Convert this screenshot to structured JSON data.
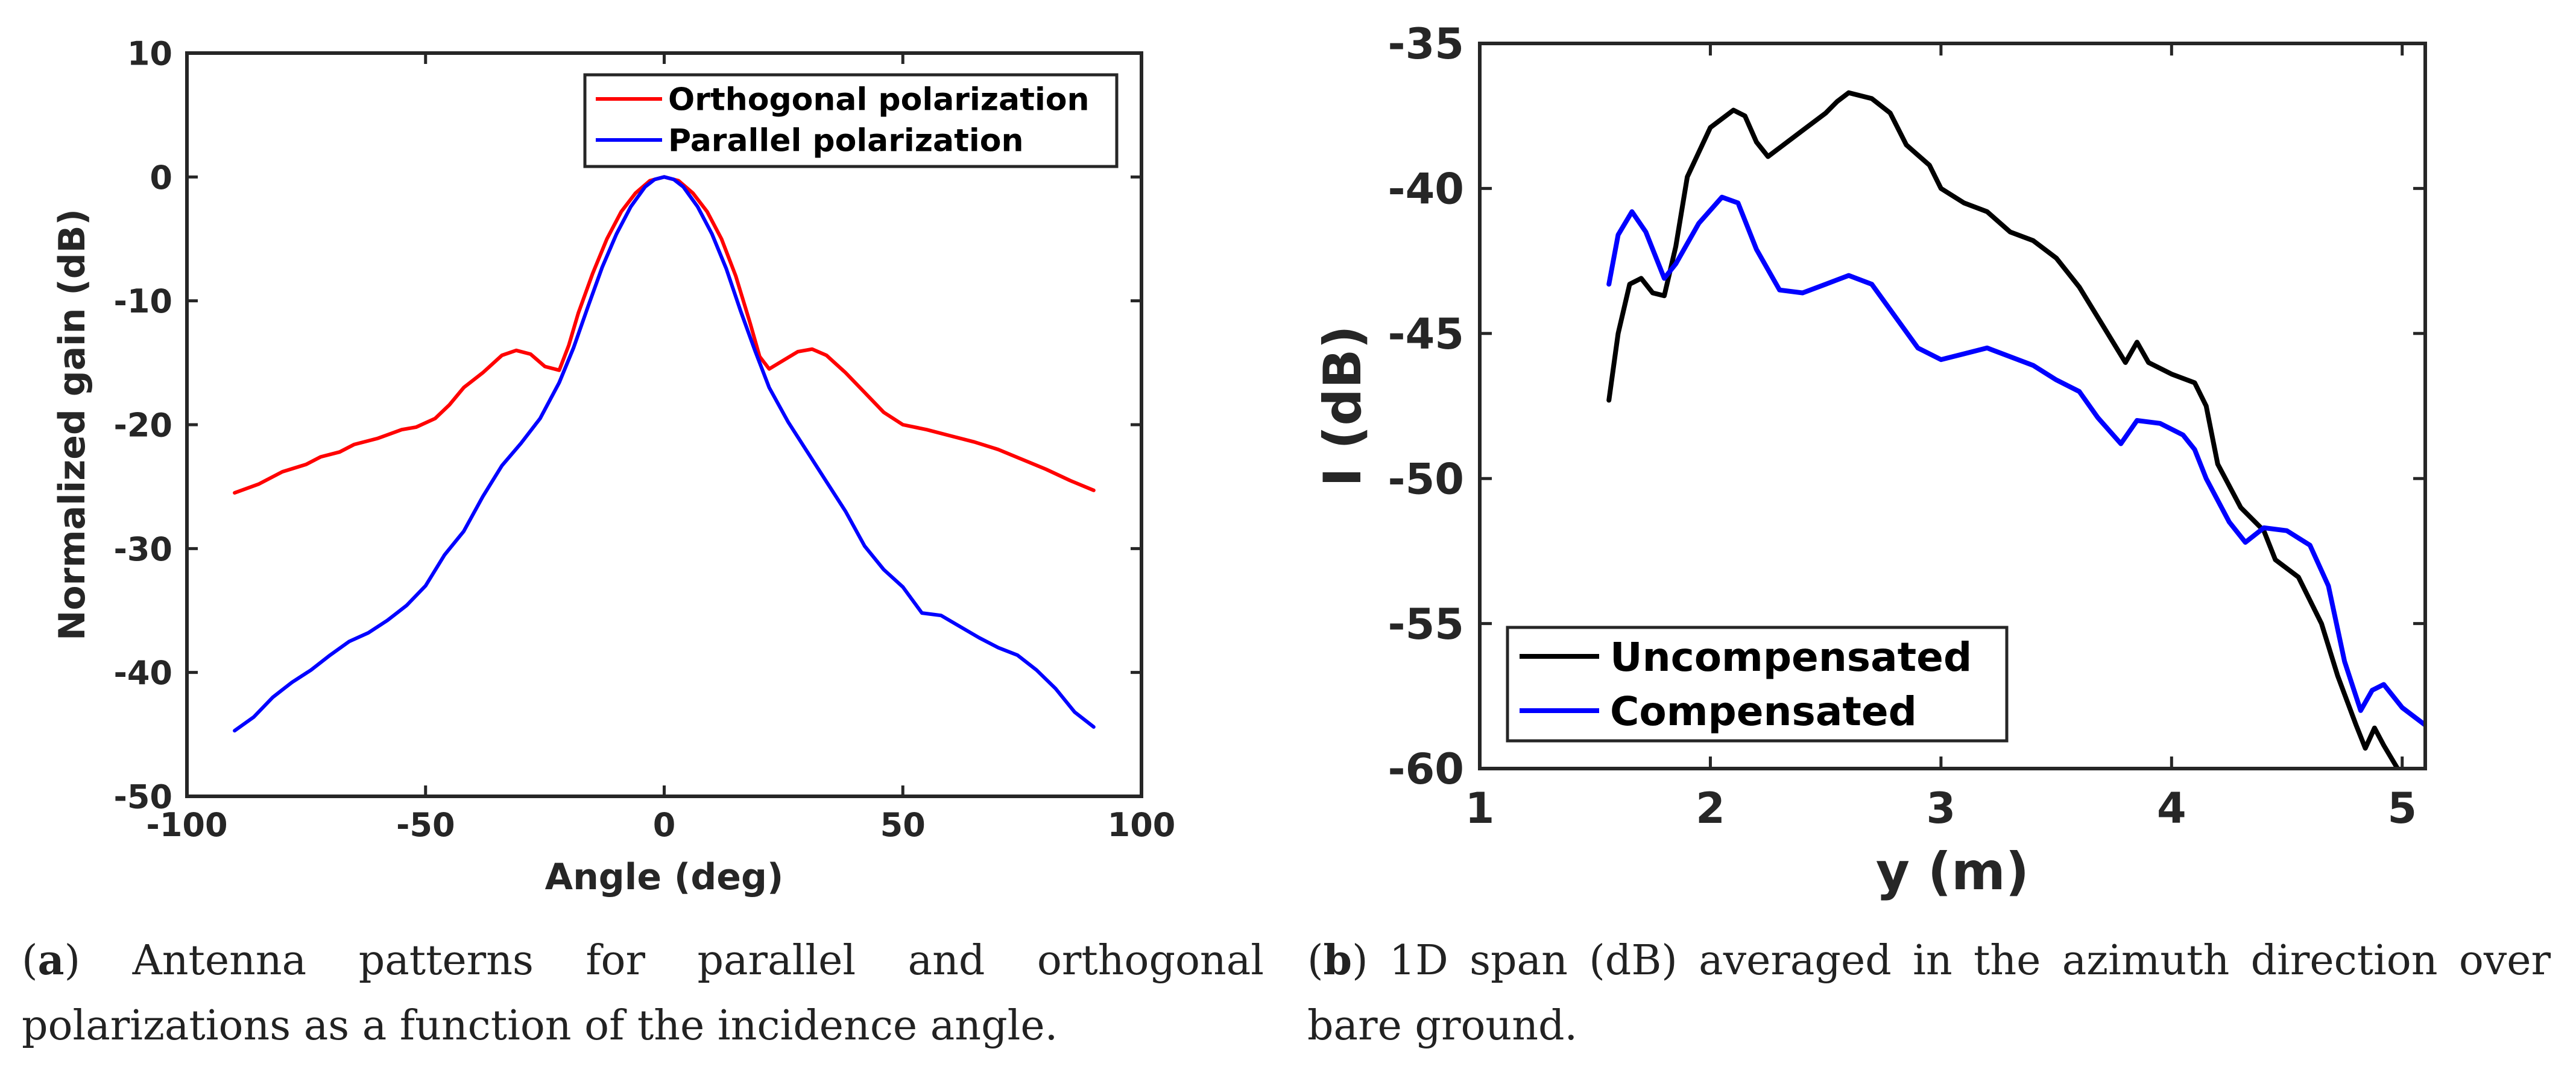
{
  "chart_data": [
    {
      "type": "line",
      "title": "",
      "xlabel": "Angle (deg)",
      "ylabel": "Normalized gain (dB)",
      "xlim": [
        -100,
        100
      ],
      "ylim": [
        -50,
        10
      ],
      "xticks": [
        -100,
        -50,
        0,
        50,
        100
      ],
      "yticks": [
        10,
        0,
        -10,
        -20,
        -30,
        -40,
        -50
      ],
      "xtick_labels": [
        "-100",
        "-50",
        "0",
        "50",
        "100"
      ],
      "ytick_labels": [
        "10",
        "0",
        "-10",
        "-20",
        "-30",
        "-40",
        "-50"
      ],
      "grid": false,
      "legend_position": "top-right",
      "series": [
        {
          "name": "Orthogonal polarization",
          "color": "#ff0000",
          "points": [
            [
              -90,
              -25.5
            ],
            [
              -85,
              -24.8
            ],
            [
              -80,
              -23.8
            ],
            [
              -75,
              -23.2
            ],
            [
              -72,
              -22.6
            ],
            [
              -68,
              -22.2
            ],
            [
              -65,
              -21.6
            ],
            [
              -60,
              -21.1
            ],
            [
              -55,
              -20.4
            ],
            [
              -52,
              -20.2
            ],
            [
              -48,
              -19.5
            ],
            [
              -45,
              -18.4
            ],
            [
              -42,
              -17.0
            ],
            [
              -38,
              -15.8
            ],
            [
              -34,
              -14.4
            ],
            [
              -31,
              -14.0
            ],
            [
              -28,
              -14.3
            ],
            [
              -25,
              -15.3
            ],
            [
              -22,
              -15.6
            ],
            [
              -20,
              -13.6
            ],
            [
              -18,
              -11.0
            ],
            [
              -15,
              -7.8
            ],
            [
              -12,
              -5.0
            ],
            [
              -9,
              -2.8
            ],
            [
              -6,
              -1.3
            ],
            [
              -3,
              -0.3
            ],
            [
              0,
              0.0
            ],
            [
              3,
              -0.3
            ],
            [
              6,
              -1.3
            ],
            [
              9,
              -2.8
            ],
            [
              12,
              -5.0
            ],
            [
              15,
              -8.0
            ],
            [
              18,
              -11.8
            ],
            [
              20,
              -14.5
            ],
            [
              22,
              -15.5
            ],
            [
              25,
              -14.8
            ],
            [
              28,
              -14.1
            ],
            [
              31,
              -13.9
            ],
            [
              34,
              -14.4
            ],
            [
              38,
              -15.8
            ],
            [
              42,
              -17.4
            ],
            [
              46,
              -19.0
            ],
            [
              50,
              -20.0
            ],
            [
              55,
              -20.4
            ],
            [
              60,
              -20.9
            ],
            [
              65,
              -21.4
            ],
            [
              70,
              -22.0
            ],
            [
              75,
              -22.8
            ],
            [
              80,
              -23.6
            ],
            [
              85,
              -24.5
            ],
            [
              90,
              -25.3
            ]
          ]
        },
        {
          "name": "Parallel polarization",
          "color": "#0000ff",
          "points": [
            [
              -90,
              -44.7
            ],
            [
              -86,
              -43.6
            ],
            [
              -82,
              -42.0
            ],
            [
              -78,
              -40.8
            ],
            [
              -74,
              -39.8
            ],
            [
              -70,
              -38.6
            ],
            [
              -66,
              -37.5
            ],
            [
              -62,
              -36.8
            ],
            [
              -58,
              -35.8
            ],
            [
              -54,
              -34.6
            ],
            [
              -50,
              -33.0
            ],
            [
              -46,
              -30.5
            ],
            [
              -42,
              -28.6
            ],
            [
              -38,
              -25.8
            ],
            [
              -34,
              -23.3
            ],
            [
              -30,
              -21.5
            ],
            [
              -26,
              -19.5
            ],
            [
              -22,
              -16.6
            ],
            [
              -19,
              -13.8
            ],
            [
              -16,
              -10.5
            ],
            [
              -13,
              -7.3
            ],
            [
              -10,
              -4.6
            ],
            [
              -7,
              -2.4
            ],
            [
              -4,
              -0.8
            ],
            [
              -2,
              -0.2
            ],
            [
              0,
              0.0
            ],
            [
              2,
              -0.2
            ],
            [
              4,
              -0.8
            ],
            [
              7,
              -2.4
            ],
            [
              10,
              -4.6
            ],
            [
              13,
              -7.4
            ],
            [
              16,
              -10.8
            ],
            [
              19,
              -14.0
            ],
            [
              22,
              -17.0
            ],
            [
              26,
              -19.8
            ],
            [
              30,
              -22.2
            ],
            [
              34,
              -24.6
            ],
            [
              38,
              -27.0
            ],
            [
              42,
              -29.8
            ],
            [
              46,
              -31.7
            ],
            [
              50,
              -33.1
            ],
            [
              54,
              -35.2
            ],
            [
              58,
              -35.4
            ],
            [
              62,
              -36.3
            ],
            [
              66,
              -37.2
            ],
            [
              70,
              -38.0
            ],
            [
              74,
              -38.6
            ],
            [
              78,
              -39.8
            ],
            [
              82,
              -41.3
            ],
            [
              86,
              -43.2
            ],
            [
              90,
              -44.4
            ]
          ]
        }
      ]
    },
    {
      "type": "line",
      "title": "",
      "xlabel": "y (m)",
      "ylabel": "I (dB)",
      "xlim": [
        1,
        5.1
      ],
      "ylim": [
        -60,
        -35
      ],
      "xticks": [
        1,
        2,
        3,
        4,
        5
      ],
      "yticks": [
        -35,
        -40,
        -45,
        -50,
        -55,
        -60
      ],
      "xtick_labels": [
        "1",
        "2",
        "3",
        "4",
        "5"
      ],
      "ytick_labels": [
        "-35",
        "-40",
        "-45",
        "-50",
        "-55",
        "-60"
      ],
      "grid": false,
      "legend_position": "bottom-left",
      "series": [
        {
          "name": "Uncompensated",
          "color": "#000000",
          "points": [
            [
              1.56,
              -47.3
            ],
            [
              1.6,
              -45.0
            ],
            [
              1.65,
              -43.3
            ],
            [
              1.7,
              -43.1
            ],
            [
              1.75,
              -43.6
            ],
            [
              1.8,
              -43.7
            ],
            [
              1.85,
              -42.0
            ],
            [
              1.9,
              -39.6
            ],
            [
              2.0,
              -37.9
            ],
            [
              2.1,
              -37.3
            ],
            [
              2.15,
              -37.5
            ],
            [
              2.2,
              -38.4
            ],
            [
              2.25,
              -38.9
            ],
            [
              2.3,
              -38.6
            ],
            [
              2.4,
              -38.0
            ],
            [
              2.5,
              -37.4
            ],
            [
              2.55,
              -37.0
            ],
            [
              2.6,
              -36.7
            ],
            [
              2.7,
              -36.9
            ],
            [
              2.78,
              -37.4
            ],
            [
              2.85,
              -38.5
            ],
            [
              2.95,
              -39.2
            ],
            [
              3.0,
              -40.0
            ],
            [
              3.1,
              -40.5
            ],
            [
              3.2,
              -40.8
            ],
            [
              3.3,
              -41.5
            ],
            [
              3.4,
              -41.8
            ],
            [
              3.5,
              -42.4
            ],
            [
              3.6,
              -43.4
            ],
            [
              3.7,
              -44.7
            ],
            [
              3.8,
              -46.0
            ],
            [
              3.85,
              -45.3
            ],
            [
              3.9,
              -46.0
            ],
            [
              4.0,
              -46.4
            ],
            [
              4.1,
              -46.7
            ],
            [
              4.15,
              -47.5
            ],
            [
              4.2,
              -49.5
            ],
            [
              4.3,
              -51.0
            ],
            [
              4.4,
              -51.8
            ],
            [
              4.45,
              -52.8
            ],
            [
              4.55,
              -53.4
            ],
            [
              4.65,
              -55.0
            ],
            [
              4.72,
              -56.8
            ],
            [
              4.8,
              -58.5
            ],
            [
              4.84,
              -59.3
            ],
            [
              4.88,
              -58.6
            ],
            [
              4.92,
              -59.2
            ],
            [
              4.98,
              -60.0
            ]
          ]
        },
        {
          "name": "Compensated",
          "color": "#0000ff",
          "points": [
            [
              1.56,
              -43.3
            ],
            [
              1.6,
              -41.6
            ],
            [
              1.66,
              -40.8
            ],
            [
              1.72,
              -41.5
            ],
            [
              1.8,
              -43.1
            ],
            [
              1.85,
              -42.6
            ],
            [
              1.95,
              -41.2
            ],
            [
              2.05,
              -40.3
            ],
            [
              2.12,
              -40.5
            ],
            [
              2.2,
              -42.1
            ],
            [
              2.3,
              -43.5
            ],
            [
              2.4,
              -43.6
            ],
            [
              2.5,
              -43.3
            ],
            [
              2.6,
              -43.0
            ],
            [
              2.7,
              -43.3
            ],
            [
              2.8,
              -44.4
            ],
            [
              2.9,
              -45.5
            ],
            [
              3.0,
              -45.9
            ],
            [
              3.1,
              -45.7
            ],
            [
              3.2,
              -45.5
            ],
            [
              3.3,
              -45.8
            ],
            [
              3.4,
              -46.1
            ],
            [
              3.5,
              -46.6
            ],
            [
              3.6,
              -47.0
            ],
            [
              3.68,
              -47.9
            ],
            [
              3.78,
              -48.8
            ],
            [
              3.85,
              -48.0
            ],
            [
              3.95,
              -48.1
            ],
            [
              4.05,
              -48.5
            ],
            [
              4.1,
              -49.0
            ],
            [
              4.15,
              -50.0
            ],
            [
              4.25,
              -51.5
            ],
            [
              4.32,
              -52.2
            ],
            [
              4.4,
              -51.7
            ],
            [
              4.5,
              -51.8
            ],
            [
              4.6,
              -52.3
            ],
            [
              4.68,
              -53.7
            ],
            [
              4.75,
              -56.3
            ],
            [
              4.82,
              -58.0
            ],
            [
              4.87,
              -57.3
            ],
            [
              4.92,
              -57.1
            ],
            [
              5.0,
              -57.9
            ],
            [
              5.1,
              -58.5
            ]
          ]
        }
      ]
    }
  ],
  "captions": {
    "a": {
      "label": "a",
      "text": "Antenna patterns for parallel and orthogonal polarizations as a function of the incidence angle."
    },
    "b": {
      "label": "b",
      "text": "1D span (dB) averaged in the azimuth direction over bare ground."
    }
  }
}
